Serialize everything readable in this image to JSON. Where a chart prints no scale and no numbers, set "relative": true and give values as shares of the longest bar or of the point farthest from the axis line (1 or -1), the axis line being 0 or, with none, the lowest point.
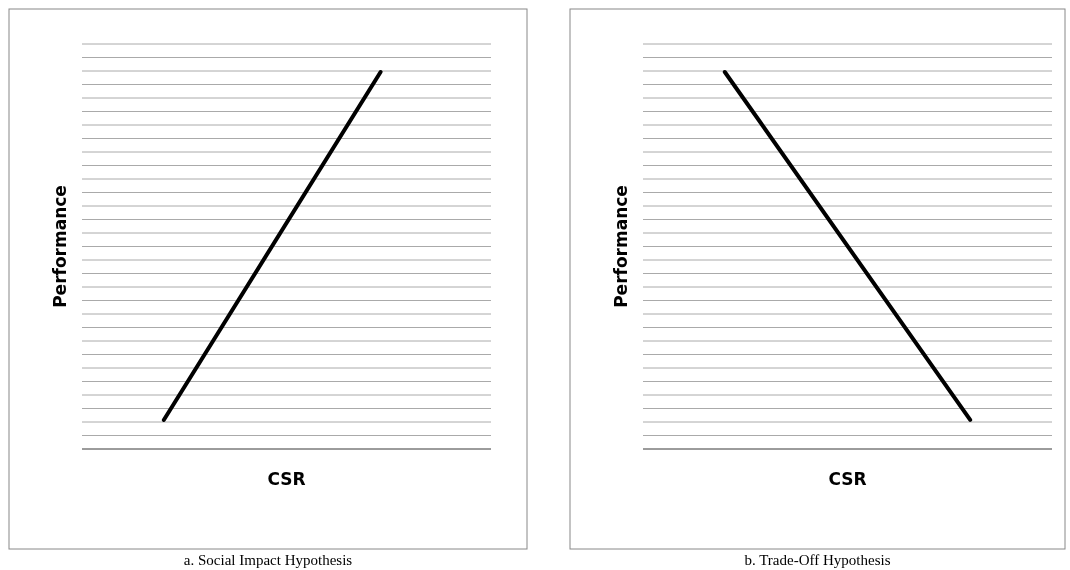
{
  "chart_data": [
    {
      "type": "line",
      "title": "a. Social Impact Hypothesis",
      "xlabel": "CSR",
      "ylabel": "Performance",
      "relative": true,
      "categories": [
        null,
        null
      ],
      "grid": true,
      "line_style": "solid",
      "marker": "none",
      "series": [
        {
          "color": "#000000",
          "values": [
            0.077,
            1
          ]
        }
      ]
    },
    {
      "type": "line",
      "title": "b. Trade-Off Hypothesis",
      "xlabel": "CSR",
      "ylabel": "Performance",
      "relative": true,
      "categories": [
        null,
        null
      ],
      "grid": true,
      "line_style": "solid",
      "marker": "none",
      "series": [
        {
          "color": "#000000",
          "values": [
            1,
            0.077
          ]
        }
      ]
    }
  ]
}
